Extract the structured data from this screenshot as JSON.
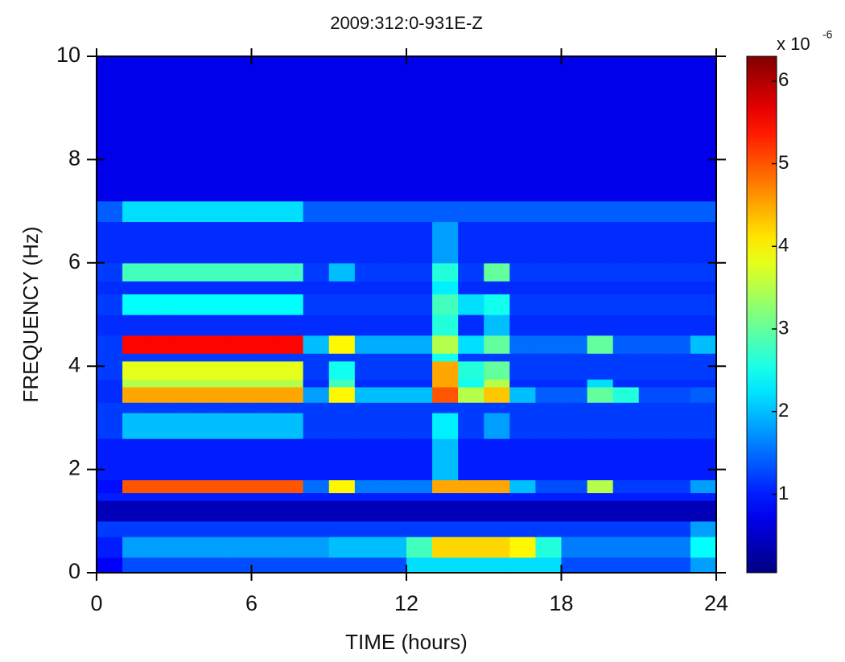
{
  "chart_data": {
    "type": "heatmap",
    "title": "2009:312:0-931E-Z",
    "x_label": "TIME (hours)",
    "y_label": "FREQUENCY (Hz)",
    "xlim": [
      0,
      24
    ],
    "xticks": [
      0,
      6,
      12,
      18,
      24
    ],
    "ylim": [
      0,
      10
    ],
    "yticks": [
      0,
      2,
      4,
      6,
      8,
      10
    ],
    "xbins": [
      0,
      1,
      2,
      3,
      4,
      5,
      6,
      7,
      8,
      9,
      10,
      11,
      12,
      13,
      14,
      15,
      16,
      17,
      18,
      19,
      20,
      21,
      22,
      23,
      24
    ],
    "ybins": [
      0,
      0.3,
      0.7,
      1.0,
      1.4,
      1.55,
      1.8,
      2.6,
      3.1,
      3.3,
      3.6,
      3.75,
      4.1,
      4.25,
      4.6,
      5.0,
      5.4,
      5.65,
      6.0,
      6.8,
      7.2,
      10
    ],
    "z": [
      [
        0.8,
        1.3,
        1.3,
        1.3,
        1.3,
        1.3,
        1.3,
        1.3,
        1.3,
        1.3,
        1.3,
        1.3,
        2.2,
        2.2,
        2.2,
        2.2,
        2.2,
        2.2,
        1.3,
        1.3,
        1.3,
        1.3,
        1.3,
        1.8
      ],
      [
        1.0,
        1.8,
        1.8,
        1.8,
        1.8,
        1.8,
        1.8,
        1.8,
        1.8,
        2.0,
        2.0,
        2.0,
        2.8,
        4.2,
        4.2,
        4.2,
        4.0,
        2.6,
        1.6,
        1.6,
        1.6,
        1.6,
        1.6,
        2.4
      ],
      [
        1.2,
        1.2,
        1.2,
        1.2,
        1.2,
        1.2,
        1.2,
        1.2,
        1.2,
        1.2,
        1.2,
        1.2,
        1.2,
        1.2,
        1.2,
        1.2,
        1.2,
        1.2,
        1.2,
        1.2,
        1.2,
        1.2,
        1.2,
        1.8
      ],
      [
        0.4,
        0.4,
        0.4,
        0.4,
        0.4,
        0.4,
        0.4,
        0.4,
        0.4,
        0.4,
        0.4,
        0.4,
        0.4,
        0.4,
        0.4,
        0.4,
        0.4,
        0.4,
        0.4,
        0.4,
        0.4,
        0.4,
        0.4,
        0.4
      ],
      [
        1.0,
        1.0,
        1.0,
        1.0,
        1.0,
        1.0,
        1.0,
        1.0,
        1.0,
        1.0,
        1.0,
        1.0,
        1.0,
        1.0,
        1.0,
        1.0,
        1.0,
        1.0,
        1.0,
        1.0,
        1.0,
        1.0,
        1.0,
        1.0
      ],
      [
        0.9,
        5.0,
        5.0,
        5.0,
        5.0,
        5.0,
        5.0,
        5.0,
        1.5,
        4.0,
        1.6,
        1.6,
        1.6,
        4.5,
        4.5,
        4.5,
        2.0,
        1.3,
        1.3,
        3.5,
        1.2,
        1.2,
        1.2,
        1.8
      ],
      [
        1.0,
        1.0,
        1.0,
        1.0,
        1.0,
        1.0,
        1.0,
        1.0,
        1.0,
        1.0,
        1.0,
        1.0,
        1.0,
        2.0,
        1.0,
        1.0,
        1.0,
        1.0,
        1.0,
        1.0,
        1.0,
        1.0,
        1.0,
        1.0
      ],
      [
        1.2,
        2.0,
        2.0,
        2.0,
        2.0,
        2.0,
        2.0,
        2.0,
        1.2,
        1.2,
        1.2,
        1.2,
        1.2,
        2.3,
        1.2,
        1.8,
        1.2,
        1.2,
        1.2,
        1.2,
        1.2,
        1.2,
        1.2,
        1.2
      ],
      [
        1.2,
        1.2,
        1.2,
        1.2,
        1.2,
        1.2,
        1.2,
        1.2,
        1.2,
        1.2,
        1.2,
        1.2,
        1.2,
        1.2,
        1.2,
        1.2,
        1.2,
        1.2,
        1.2,
        1.2,
        1.2,
        1.2,
        1.2,
        1.2
      ],
      [
        1.1,
        4.5,
        4.5,
        4.5,
        4.5,
        4.5,
        4.5,
        4.5,
        1.8,
        4.0,
        2.0,
        2.0,
        2.0,
        5.0,
        3.5,
        4.3,
        2.0,
        1.4,
        1.4,
        3.0,
        2.6,
        1.3,
        1.3,
        1.4
      ],
      [
        1.1,
        3.5,
        3.5,
        3.5,
        3.5,
        3.5,
        3.5,
        3.5,
        1.1,
        2.8,
        1.1,
        1.1,
        1.1,
        4.5,
        2.5,
        3.5,
        1.1,
        1.1,
        1.1,
        2.2,
        1.1,
        1.1,
        1.1,
        1.1
      ],
      [
        1.2,
        3.8,
        3.8,
        3.8,
        3.8,
        3.8,
        3.8,
        3.8,
        1.2,
        2.5,
        1.2,
        1.2,
        1.2,
        4.5,
        2.6,
        3.0,
        1.2,
        1.2,
        1.2,
        1.2,
        1.2,
        1.2,
        1.2,
        1.2
      ],
      [
        1.2,
        1.2,
        1.2,
        1.2,
        1.2,
        1.2,
        1.2,
        1.2,
        1.2,
        1.2,
        1.2,
        1.2,
        1.2,
        2.5,
        1.2,
        1.2,
        1.2,
        1.2,
        1.2,
        1.2,
        1.2,
        1.2,
        1.2,
        1.2
      ],
      [
        1.2,
        5.5,
        5.5,
        5.5,
        5.5,
        5.5,
        5.5,
        5.5,
        2.0,
        4.0,
        1.9,
        1.9,
        1.9,
        3.5,
        2.2,
        3.0,
        1.5,
        1.5,
        1.5,
        3.0,
        1.4,
        1.4,
        1.4,
        2.0
      ],
      [
        1.1,
        1.1,
        1.1,
        1.1,
        1.1,
        1.1,
        1.1,
        1.1,
        1.1,
        1.1,
        1.1,
        1.1,
        1.1,
        2.6,
        1.1,
        2.0,
        1.1,
        1.1,
        1.1,
        1.1,
        1.1,
        1.1,
        1.1,
        1.1
      ],
      [
        1.2,
        2.4,
        2.4,
        2.4,
        2.4,
        2.4,
        2.4,
        2.4,
        1.2,
        1.2,
        1.2,
        1.2,
        1.2,
        2.8,
        2.2,
        2.5,
        1.2,
        1.2,
        1.2,
        1.2,
        1.2,
        1.2,
        1.2,
        1.2
      ],
      [
        1.1,
        1.1,
        1.1,
        1.1,
        1.1,
        1.1,
        1.1,
        1.1,
        1.1,
        1.1,
        1.1,
        1.1,
        1.1,
        2.3,
        1.1,
        1.1,
        1.1,
        1.1,
        1.1,
        1.1,
        1.1,
        1.1,
        1.1,
        1.1
      ],
      [
        1.2,
        2.8,
        2.8,
        2.8,
        2.8,
        2.8,
        2.8,
        2.8,
        1.2,
        2.0,
        1.2,
        1.2,
        1.2,
        2.6,
        1.2,
        3.0,
        1.2,
        1.2,
        1.2,
        1.2,
        1.2,
        1.2,
        1.2,
        1.2
      ],
      [
        1.1,
        1.1,
        1.1,
        1.1,
        1.1,
        1.1,
        1.1,
        1.1,
        1.1,
        1.1,
        1.1,
        1.1,
        1.1,
        1.8,
        1.1,
        1.1,
        1.1,
        1.1,
        1.1,
        1.1,
        1.1,
        1.1,
        1.1,
        1.1
      ],
      [
        1.4,
        2.2,
        2.2,
        2.2,
        2.2,
        2.2,
        2.2,
        2.2,
        1.4,
        1.4,
        1.4,
        1.4,
        1.4,
        1.4,
        1.4,
        1.4,
        1.4,
        1.4,
        1.4,
        1.4,
        1.4,
        1.4,
        1.4,
        1.4
      ],
      [
        0.7,
        0.7,
        0.7,
        0.7,
        0.7,
        0.7,
        0.7,
        0.7,
        0.7,
        0.7,
        0.7,
        0.7,
        0.7,
        0.7,
        0.7,
        0.7,
        0.7,
        0.7,
        0.7,
        0.7,
        0.7,
        0.7,
        0.7,
        0.7
      ]
    ],
    "colormap": "jet",
    "clim": [
      0.05,
      6.3
    ],
    "cticks": [
      1,
      2,
      3,
      4,
      5,
      6
    ],
    "colorbar_multiplier": "x 10",
    "colorbar_exponent": "-6"
  }
}
